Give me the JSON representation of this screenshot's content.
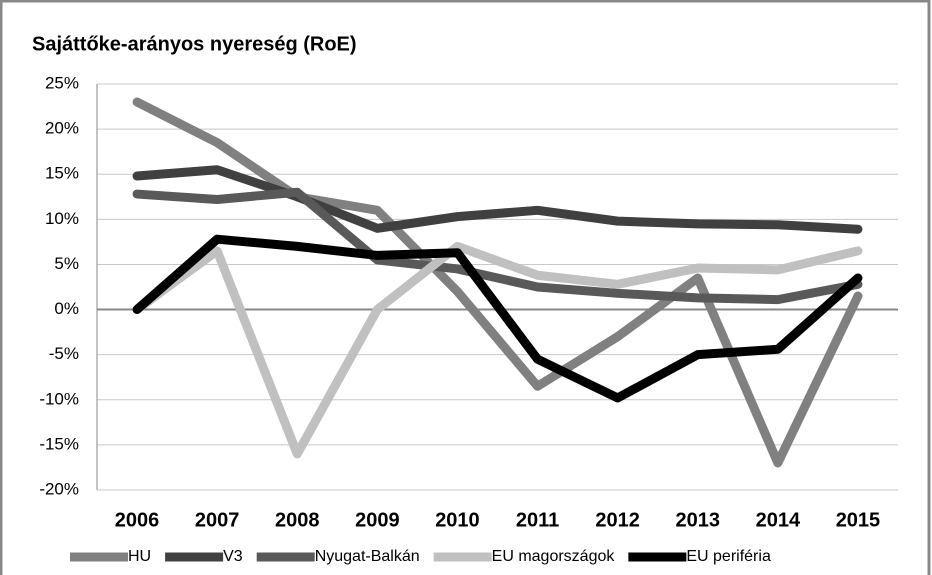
{
  "chart_data": {
    "type": "line",
    "title": "Sajáttőke-arányos nyereség (RoE)",
    "categories": [
      "2006",
      "2007",
      "2008",
      "2009",
      "2010",
      "2011",
      "2012",
      "2013",
      "2014",
      "2015"
    ],
    "series": [
      {
        "name": "HU",
        "color": "#808080",
        "values": [
          23,
          18.5,
          12.5,
          11,
          2,
          -8.5,
          -3,
          3.5,
          -17,
          1.5
        ]
      },
      {
        "name": "V3",
        "color": "#404040",
        "values": [
          14.8,
          15.5,
          12.5,
          9,
          10.3,
          11,
          9.8,
          9.5,
          9.4,
          8.9
        ]
      },
      {
        "name": "Nyugat-Balkán",
        "color": "#595959",
        "values": [
          12.8,
          12.2,
          13,
          5.5,
          4.5,
          2.5,
          1.8,
          1.3,
          1.1,
          2.8
        ]
      },
      {
        "name": "EU magországok",
        "color": "#c0c0c0",
        "values": [
          0,
          6.5,
          -16,
          0,
          7,
          3.8,
          2.8,
          4.6,
          4.4,
          6.5
        ]
      },
      {
        "name": "EU periféria",
        "color": "#000000",
        "values": [
          0,
          7.8,
          7,
          6,
          6.3,
          -5.5,
          -9.8,
          -5,
          -4.4,
          3.5
        ]
      }
    ],
    "ylim": [
      -20,
      25
    ],
    "yticks": [
      {
        "value": -20,
        "label": "-20%"
      },
      {
        "value": -15,
        "label": "-15%"
      },
      {
        "value": -10,
        "label": "-10%"
      },
      {
        "value": -5,
        "label": "-5%"
      },
      {
        "value": 0,
        "label": "0%"
      },
      {
        "value": 5,
        "label": "5%"
      },
      {
        "value": 10,
        "label": "10%"
      },
      {
        "value": 15,
        "label": "15%"
      },
      {
        "value": 20,
        "label": "20%"
      },
      {
        "value": 25,
        "label": "25%"
      }
    ],
    "grid": true,
    "legend": "bottom"
  }
}
